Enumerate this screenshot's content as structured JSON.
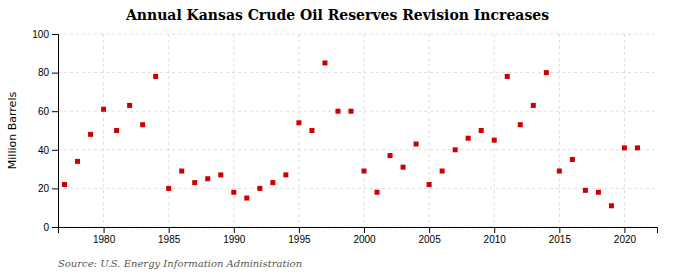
{
  "chart_data": {
    "type": "scatter",
    "title": "Annual Kansas Crude Oil Reserves Revision Increases",
    "ylabel": "Million Barrels",
    "source": "Source: U.S. Energy Information Administration",
    "color": "#cc0000",
    "marker": "square",
    "grid": true,
    "xlim": [
      1976.5,
      2022.5
    ],
    "ylim": [
      0,
      100
    ],
    "xticks": [
      1980,
      1985,
      1990,
      1995,
      2000,
      2005,
      2010,
      2015,
      2020
    ],
    "yticks": [
      0,
      20,
      40,
      60,
      80,
      100
    ],
    "x": [
      1977,
      1978,
      1979,
      1980,
      1981,
      1982,
      1983,
      1984,
      1985,
      1986,
      1987,
      1988,
      1989,
      1990,
      1991,
      1992,
      1993,
      1994,
      1995,
      1996,
      1997,
      1998,
      1999,
      2000,
      2001,
      2002,
      2003,
      2004,
      2005,
      2006,
      2007,
      2008,
      2009,
      2010,
      2011,
      2012,
      2013,
      2014,
      2015,
      2016,
      2017,
      2018,
      2019,
      2020,
      2021
    ],
    "values": [
      22,
      34,
      48,
      61,
      50,
      63,
      53,
      78,
      20,
      29,
      23,
      25,
      27,
      18,
      15,
      20,
      23,
      27,
      54,
      50,
      85,
      60,
      60,
      29,
      18,
      37,
      31,
      43,
      22,
      29,
      40,
      46,
      50,
      45,
      78,
      53,
      63,
      80,
      29,
      35,
      19,
      18,
      11,
      41,
      41
    ]
  }
}
